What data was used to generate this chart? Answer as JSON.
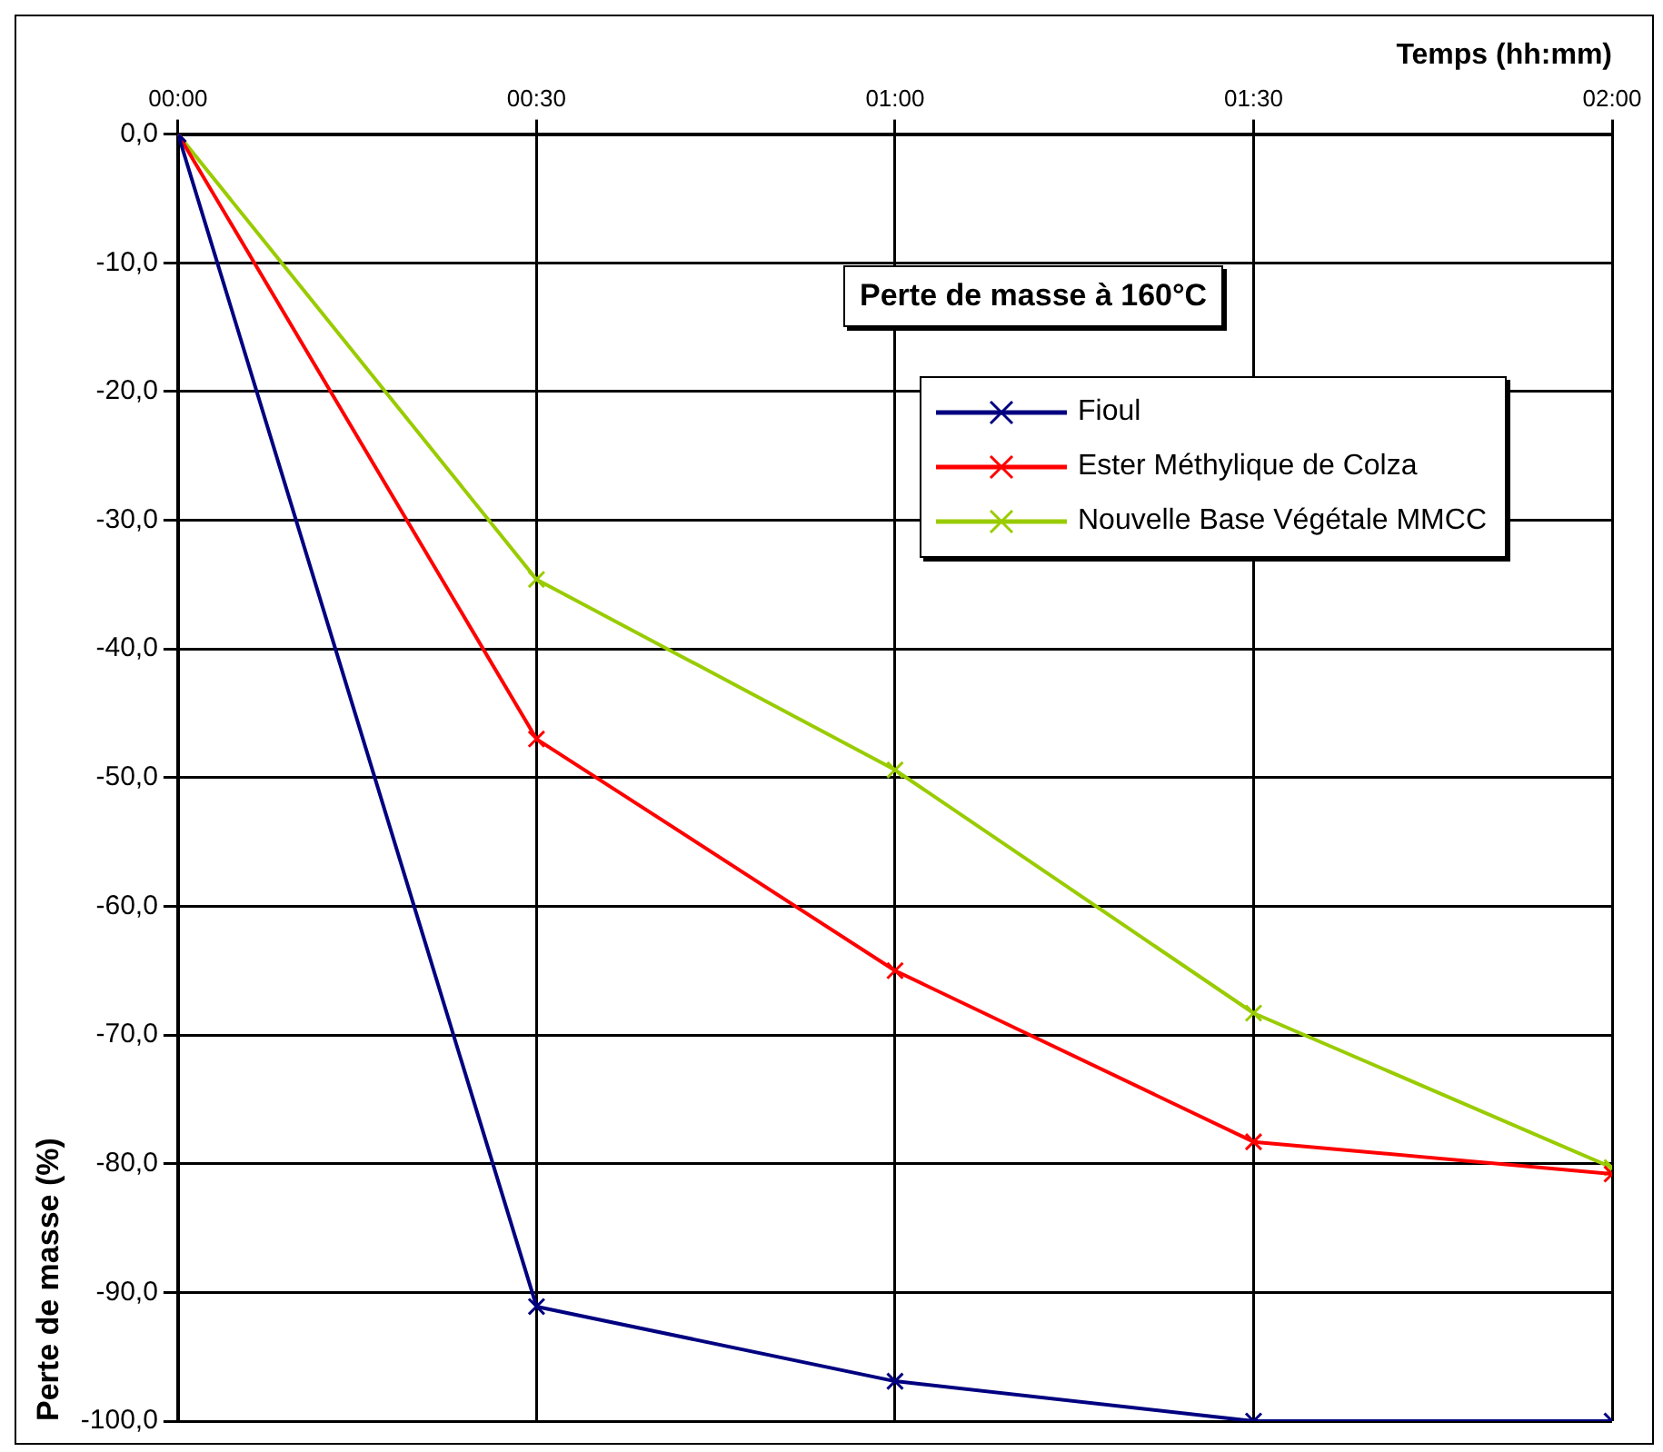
{
  "chart_data": {
    "type": "line",
    "title": "Perte de masse à 160°C",
    "xlabel": "Temps (hh:mm)",
    "ylabel": "Perte de masse (%)",
    "x": [
      0,
      0.5,
      1,
      1.5,
      2
    ],
    "series": [
      {
        "name": "Fioul",
        "color": "#000080",
        "values": [
          0,
          -91.1,
          -96.9,
          -100,
          -100
        ]
      },
      {
        "name": "Ester Méthylique de Colza",
        "color": "#ff0000",
        "values": [
          0,
          -47,
          -65,
          -78.3,
          -80.8
        ]
      },
      {
        "name": "Nouvelle Base Végétale MMCC",
        "color": "#99cc00",
        "values": [
          0,
          -34.6,
          -49.4,
          -68.3,
          -80.3
        ]
      }
    ],
    "xlim": [
      0,
      2
    ],
    "xticks": [
      {
        "value": 0,
        "label": "00:00"
      },
      {
        "value": 0.5,
        "label": "00:30"
      },
      {
        "value": 1,
        "label": "01:00"
      },
      {
        "value": 1.5,
        "label": "01:30"
      },
      {
        "value": 2,
        "label": "02:00"
      }
    ],
    "ylim": [
      -100,
      0
    ],
    "yticks": [
      {
        "value": -100,
        "label": "-100,0"
      },
      {
        "value": -90,
        "label": "-90,0"
      },
      {
        "value": -80,
        "label": "-80,0"
      },
      {
        "value": -70,
        "label": "-70,0"
      },
      {
        "value": -60,
        "label": "-60,0"
      },
      {
        "value": -50,
        "label": "-50,0"
      },
      {
        "value": -40,
        "label": "-40,0"
      },
      {
        "value": -30,
        "label": "-30,0"
      },
      {
        "value": -20,
        "label": "-20,0"
      },
      {
        "value": -10,
        "label": "-10,0"
      },
      {
        "value": 0,
        "label": "0,0"
      }
    ],
    "grid": true,
    "legend": "top right",
    "marker": "cross",
    "line_style": "solid"
  }
}
